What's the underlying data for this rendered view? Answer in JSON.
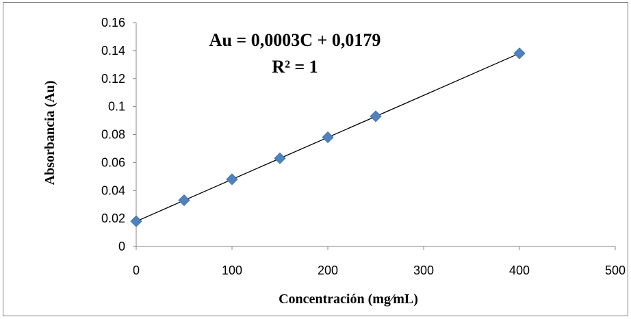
{
  "chart_data": {
    "type": "scatter",
    "title": "",
    "xlabel": "Concentración (mg⁄mL)",
    "ylabel": "Absorbancia (Au)",
    "xlim": [
      0,
      500
    ],
    "ylim": [
      0,
      0.16
    ],
    "x_ticks": [
      "0",
      "100",
      "200",
      "300",
      "400",
      "500"
    ],
    "y_ticks": [
      "0",
      "0.02",
      "0.04",
      "0.06",
      "0.08",
      "0.1",
      "0.12",
      "0.14",
      "0.16"
    ],
    "series": [
      {
        "x": [
          0,
          50,
          100,
          150,
          200,
          250,
          400
        ],
        "y": [
          0.018,
          0.033,
          0.048,
          0.063,
          0.078,
          0.093,
          0.138
        ],
        "marker": "diamond",
        "color": "#4f81bd"
      }
    ],
    "trendline": {
      "type": "linear",
      "slope": 0.0003,
      "intercept": 0.0179,
      "x_range": [
        0,
        400
      ],
      "color": "#000000"
    },
    "annotations": {
      "equation": "Au = 0,0003C + 0,0179",
      "r_squared": "R² = 1"
    },
    "grid": false,
    "legend": "none"
  }
}
